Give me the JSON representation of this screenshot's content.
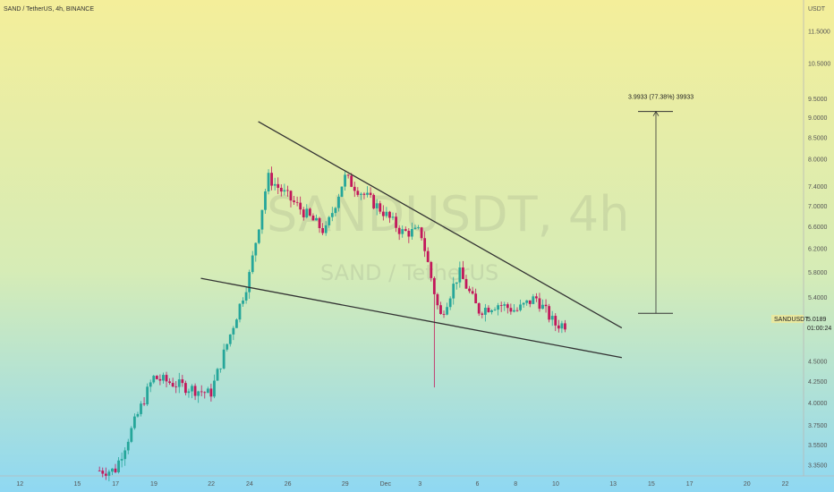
{
  "header": {
    "symbol_line": "SAND / TetherUS, 4h, BINANCE"
  },
  "watermark": {
    "ticker": "SANDUSDT, 4h",
    "pair": "SAND / TetherUS"
  },
  "price_axis": {
    "currency": "USDT",
    "ticks": [
      "11.5000",
      "10.5000",
      "9.5000",
      "9.0000",
      "8.5000",
      "8.0000",
      "7.4000",
      "7.0000",
      "6.6000",
      "6.2000",
      "5.8000",
      "5.4000",
      "4.5000",
      "4.2500",
      "4.0000",
      "3.7500",
      "3.5500",
      "3.3500"
    ],
    "tick_values": [
      11.5,
      10.5,
      9.5,
      9.0,
      8.5,
      8.0,
      7.4,
      7.0,
      6.6,
      6.2,
      5.8,
      5.4,
      4.5,
      4.25,
      4.0,
      3.75,
      3.55,
      3.35
    ],
    "scale": "log"
  },
  "time_axis": {
    "ticks": [
      "12",
      "15",
      "17",
      "19",
      "22",
      "24",
      "26",
      "29",
      "Dec",
      "3",
      "6",
      "8",
      "10",
      "13",
      "15",
      "17",
      "20",
      "22"
    ]
  },
  "current_price": {
    "symbol": "SANDUSDT",
    "price": "5.0189",
    "countdown": "01:00:24",
    "value": 5.0189
  },
  "measure": {
    "label": "3.9933 (77.38%) 39933",
    "from_price": 5.16,
    "to_price": 9.16
  },
  "colors": {
    "bull": "#26a69a",
    "bear": "#c2185b",
    "trendline": "#333333",
    "bg_top": "#f4ee9a",
    "bg_bottom": "#8fd8f2"
  },
  "chart_data": {
    "type": "candlestick",
    "pattern": "falling wedge",
    "y_scale": "log",
    "ylim": [
      3.25,
      12.2
    ],
    "time_range": [
      "Nov 11",
      "Dec 23"
    ],
    "price_path_approx": [
      {
        "x": "Nov 17",
        "close": 3.3
      },
      {
        "x": "Nov 19",
        "close": 4.3
      },
      {
        "x": "Nov 22",
        "close": 4.1
      },
      {
        "x": "Nov 24",
        "close": 5.7
      },
      {
        "x": "Nov 25",
        "close": 7.6
      },
      {
        "x": "Nov 26",
        "close": 7.2
      },
      {
        "x": "Nov 28",
        "close": 6.5
      },
      {
        "x": "Nov 29",
        "close": 7.6
      },
      {
        "x": "Dec 1",
        "close": 6.9
      },
      {
        "x": "Dec 2",
        "close": 6.5
      },
      {
        "x": "Dec 3",
        "close": 6.5
      },
      {
        "x": "Dec 4",
        "close": 5.1
      },
      {
        "x": "Dec 5",
        "close": 5.8
      },
      {
        "x": "Dec 6",
        "close": 5.2
      },
      {
        "x": "Dec 7",
        "close": 5.3
      },
      {
        "x": "Dec 8",
        "close": 5.2
      },
      {
        "x": "Dec 9",
        "close": 5.4
      },
      {
        "x": "Dec 10",
        "close": 5.0
      }
    ],
    "wick_low": 4.18,
    "trendlines": [
      {
        "name": "upper",
        "from": {
          "x": "Nov 24.5",
          "y": 8.9
        },
        "to": {
          "x": "Dec 13.5",
          "y": 4.95
        }
      },
      {
        "name": "lower",
        "from": {
          "x": "Nov 21.5",
          "y": 5.7
        },
        "to": {
          "x": "Dec 13.5",
          "y": 4.55
        }
      }
    ]
  }
}
